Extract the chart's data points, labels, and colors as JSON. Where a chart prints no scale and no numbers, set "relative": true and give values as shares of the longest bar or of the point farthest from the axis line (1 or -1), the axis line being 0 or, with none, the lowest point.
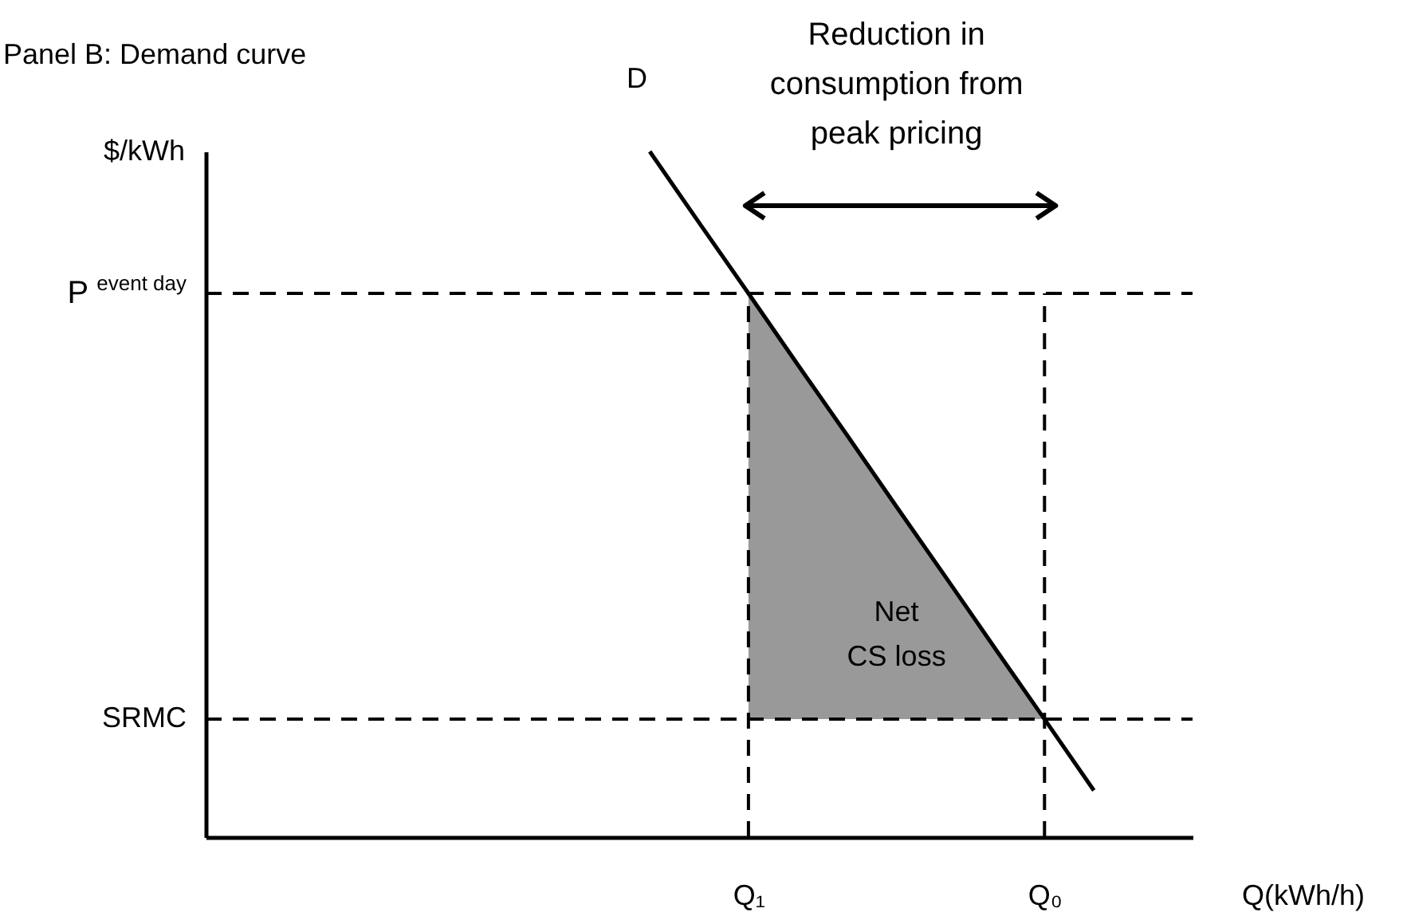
{
  "chart_data": {
    "type": "line",
    "title": "Panel B: Demand curve",
    "xlabel": "Q(kWh/h)",
    "ylabel": "$/kWh",
    "relative": true,
    "tick_labels": "x",
    "categories": [
      null,
      null,
      null,
      null,
      null,
      null,
      null,
      null,
      null,
      null,
      null,
      "Q₁",
      null,
      null,
      null,
      null,
      null,
      "Q₀",
      null,
      null,
      null
    ],
    "series": [
      {
        "color": "#000000",
        "values": [
          null,
          null,
          null,
          null,
          null,
          null,
          null,
          null,
          null,
          1,
          0.896,
          0.793,
          0.689,
          0.586,
          0.482,
          0.379,
          0.275,
          0.172,
          0.068,
          null,
          null
        ],
        "upper": [
          null,
          null,
          null,
          null,
          null,
          null,
          null,
          null,
          null,
          null,
          null,
          0.793,
          0.689,
          0.586,
          0.482,
          0.379,
          0.275,
          0.172,
          null,
          null,
          null
        ],
        "lower": [
          null,
          null,
          null,
          null,
          null,
          null,
          null,
          null,
          null,
          null,
          null,
          0.172,
          0.172,
          0.172,
          0.172,
          0.172,
          0.172,
          0.172,
          null,
          null,
          null
        ]
      }
    ],
    "ref_lines": [
      {
        "axis": "y",
        "value": 0.793,
        "label": "P$^{event day}$",
        "color": "#000000",
        "line_style": "dashed"
      },
      {
        "axis": "y",
        "value": 0.172,
        "label": "SRMC",
        "color": "#000000",
        "line_style": "dashed"
      },
      {
        "axis": "x",
        "value": "Q₁",
        "color": "#000000",
        "line_style": "dashed"
      },
      {
        "axis": "x",
        "value": "Q₀",
        "color": "#000000",
        "line_style": "dashed"
      }
    ],
    "annotations": [
      "D",
      "Net\nCS loss",
      "Reduction in\nconsumption from\npeak pricing"
    ]
  }
}
